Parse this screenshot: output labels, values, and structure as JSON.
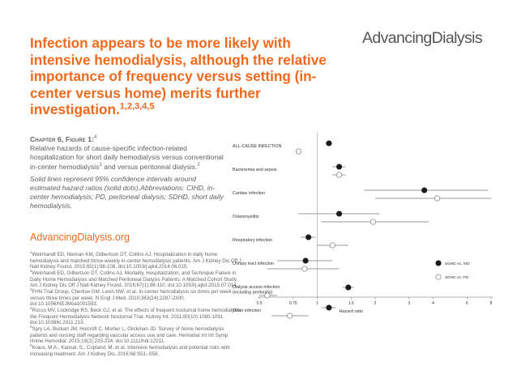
{
  "header": {
    "headline": "Infection appears to be more likely with intensive hemodialysis, although the relative importance of frequency versus setting (in-center versus home) merits further investigation.",
    "headline_refs": "1,2,3,4,5",
    "logo": "AdvancingDialysis"
  },
  "caption": {
    "figure_label": "Chapter 6, Figure 1:",
    "figure_ref": "4",
    "text": "Relative hazards of cause-specific infection-related hospitalization for short daily hemodialysis versus conventional in-center hemodialysis",
    "ref_a": "1",
    "text2": " and versus peritoneal dialysis.",
    "ref_b": "2",
    "italic_note": "Solid lines represent 95% confidence intervals around estimated hazard ratios (solid dots).Abbreviations: CIHD, in-center hemodialysis; PD, peritoneal dialysis; SDHD, short daily hemodialysis."
  },
  "site_link": "AdvancingDialysis.org",
  "references": [
    {
      "num": "1",
      "text": "Weinhandl ED, Nieman KM, Gilbertson DT, Collins AJ. Hospitalization in daily home hemodialysis and matched thrice-weekly in-center hemodialysis patients. Am J Kidney Dis Off J Natl Kidney Found. 2015;65(1):98-108. doi:10.1053/j.ajkd.2014.06.015."
    },
    {
      "num": "2",
      "text": "Weinhandl ED, Gilbertson DT, Collins AJ. Mortality, Hospitalization, and Technique Failure in Daily Home Hemodialysis and Matched Peritoneal Dialysis Patients: A Matched Cohort Study. Am J Kidney Dis Off J Natl Kidney Found. 2016;67(1):98-110. doi:10.1053/j.ajkd.2015.07.014."
    },
    {
      "num": "3",
      "text": "FHN Trial Group, Chertow GM, Levin NW, et al. In-center hemodialysis six times per week versus three times per week. N Engl J Med. 2010;363(24):2287-2300. doi:10.1056/NEJMoa1001593."
    },
    {
      "num": "4",
      "text": "Rocco MV, Lockridge RS, Beck GJ, et al. The effects of frequent nocturnal home hemodialysis: the Frequent Hemodialysis Network Nocturnal Trial. Kidney Int. 2011;80(10):1080-1091. doi:10.1038/ki.2011.213."
    },
    {
      "num": "5",
      "text": "Spry LA, Burkart JM, Holcroft C, Mortier L, Glickman JD. Survey of home hemodialysis patients and nursing staff regarding vascular access use and care. Hemodial Int Int Symp Home Hemodial. 2015;19(2):225-234. doi:10.1111/hdi.12211."
    },
    {
      "num": "6",
      "text": "Kraus, M.A., Kansal, S., Copland, M. et al. Intensive hemodialysis and potential risks with increasing treatment. Am J Kidney Dis. 2016;68:S51–S58."
    }
  ],
  "chart_data": {
    "type": "forest",
    "xlabel": "Hazard ratio",
    "xscale": "log",
    "xlim": [
      0.5,
      8
    ],
    "xticks": [
      "0.5",
      "0.75",
      "1",
      "1.5",
      "2",
      "3",
      "4",
      "6",
      "8"
    ],
    "xtick_values": [
      0.5,
      0.75,
      1,
      1.5,
      2,
      3,
      4,
      6,
      8
    ],
    "reference_line": 1,
    "legend": {
      "placement": "lower-right",
      "items": [
        {
          "name": "SDHD vs. IHD",
          "style": "solid"
        },
        {
          "name": "SDHD vs. PD",
          "style": "open"
        }
      ]
    },
    "colors": {
      "solid": "#1a1a1a",
      "open": "#ffffff",
      "line": "#999999"
    },
    "categories": [
      "ALL-CAUSE INFECTION",
      "Bacteremia and sepsis",
      "Cardiac infection",
      "Osteomyelitis",
      "Respiratory infection",
      "Urinary tract infection",
      "Dialysis access infection (including peritonitis)",
      "Other infection"
    ],
    "category_lines": [
      [
        "ALL-CAUSE INFECTION"
      ],
      [
        "Bacteremia and sepsis"
      ],
      [
        "Cardiac infection"
      ],
      [
        "Osteomyelitis"
      ],
      [
        "Respiratory infection"
      ],
      [
        "Urinary tract infection"
      ],
      [
        "Dialysis access infection",
        "(including peritonitis)"
      ],
      [
        "Other infection"
      ]
    ],
    "series": [
      {
        "name": "SDHD vs. IHD",
        "marker": "solid",
        "hr": [
          1.15,
          1.3,
          3.6,
          1.3,
          0.9,
          0.87,
          1.45,
          1.15
        ],
        "low": [
          1.1,
          1.2,
          1.75,
          0.8,
          0.82,
          0.62,
          1.35,
          1.05
        ],
        "high": [
          1.2,
          1.4,
          7.7,
          2.1,
          0.98,
          1.2,
          1.55,
          1.25
        ]
      },
      {
        "name": "SDHD vs. PD",
        "marker": "open",
        "hr": [
          0.8,
          1.3,
          4.2,
          1.95,
          1.2,
          0.86,
          0.55,
          0.72
        ],
        "low": [
          0.78,
          1.2,
          2.0,
          1.05,
          1.0,
          0.55,
          0.5,
          0.58
        ],
        "high": [
          0.82,
          1.4,
          8.0,
          3.8,
          1.45,
          1.3,
          0.62,
          0.9
        ]
      }
    ]
  }
}
